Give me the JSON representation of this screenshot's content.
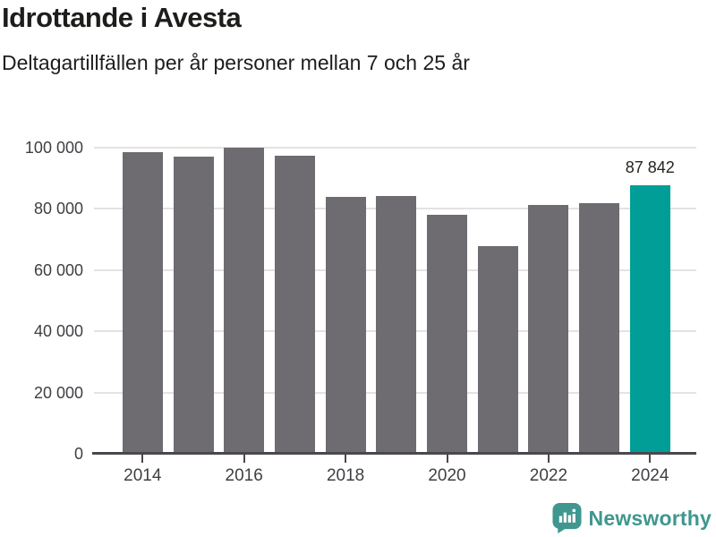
{
  "header": {
    "title": "Idrottande i Avesta",
    "subtitle": "Deltagartillfällen per år personer mellan 7 och 25 år"
  },
  "chart_data": {
    "type": "bar",
    "title": "Idrottande i Avesta",
    "subtitle": "Deltagartillfällen per år personer mellan 7 och 25 år",
    "categories": [
      "2014",
      "2015",
      "2016",
      "2017",
      "2018",
      "2019",
      "2020",
      "2021",
      "2022",
      "2023",
      "2024"
    ],
    "values": [
      98400,
      97000,
      100100,
      97400,
      84000,
      84300,
      78000,
      67900,
      81400,
      82000,
      87842
    ],
    "highlight_index": 10,
    "annotation": {
      "index": 10,
      "text": "87 842",
      "value": 87842
    },
    "ylim": [
      0,
      100000
    ],
    "ytick_values": [
      0,
      20000,
      40000,
      60000,
      80000,
      100000
    ],
    "ytick_labels": [
      "0",
      "20 000",
      "40 000",
      "60 000",
      "80 000",
      "100 000"
    ],
    "xtick_indices": [
      0,
      2,
      4,
      6,
      8,
      10
    ],
    "xtick_labels": [
      "2014",
      "2016",
      "2018",
      "2020",
      "2022",
      "2024"
    ],
    "grid": "horizontal",
    "legend": "none",
    "bar_color": "#6e6b71",
    "highlight_color": "#009e96",
    "axis_color": "#4a484d",
    "gridline_color": "#e4e2e4",
    "label_color": "#403e43"
  },
  "footer": {
    "brand": "Newsworthy",
    "brand_color": "#3f978f",
    "logo_icon": "bar-chart-speech-bubble-icon"
  }
}
